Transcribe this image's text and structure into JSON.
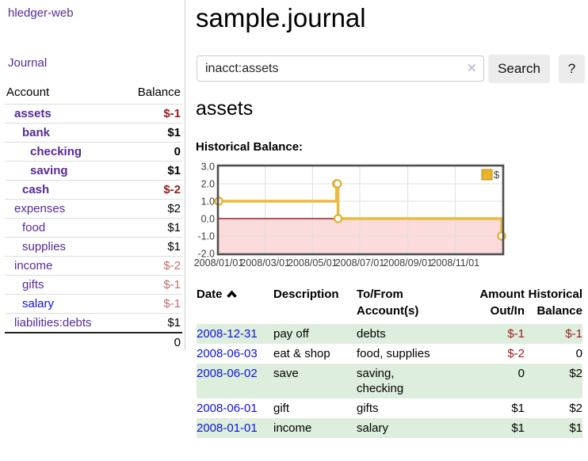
{
  "colors": {
    "purple": "#552a99",
    "blue": "#0f10e0",
    "negative": "#9c1b1b",
    "negative_soft": "#c17070",
    "stripe_green": "#ddeedd",
    "chart_line": "#e9bc3f",
    "chart_negative_fill": "#fbdbdb",
    "chart_zero_line": "#9b1c1c"
  },
  "app": {
    "brand": "hledger-web",
    "nav_journal": "Journal"
  },
  "sidebar": {
    "header": {
      "account": "Account",
      "balance": "Balance"
    },
    "accounts": [
      {
        "label": "assets",
        "balance": "$-1",
        "depth": 0,
        "bold": true,
        "tone": "neg",
        "link": "purple"
      },
      {
        "label": "bank",
        "balance": "$1",
        "depth": 1,
        "bold": true,
        "tone": "normal",
        "link": "purple"
      },
      {
        "label": "checking",
        "balance": "0",
        "depth": 2,
        "bold": true,
        "tone": "normal",
        "link": "purple"
      },
      {
        "label": "saving",
        "balance": "$1",
        "depth": 2,
        "bold": true,
        "tone": "normal",
        "link": "purple"
      },
      {
        "label": "cash",
        "balance": "$-2",
        "depth": 1,
        "bold": true,
        "tone": "neg",
        "link": "purple"
      },
      {
        "label": "expenses",
        "balance": "$2",
        "depth": 0,
        "bold": false,
        "tone": "normal",
        "link": "purple"
      },
      {
        "label": "food",
        "balance": "$1",
        "depth": 1,
        "bold": false,
        "tone": "normal",
        "link": "purple"
      },
      {
        "label": "supplies",
        "balance": "$1",
        "depth": 1,
        "bold": false,
        "tone": "normal",
        "link": "purple"
      },
      {
        "label": "income",
        "balance": "$-2",
        "depth": 0,
        "bold": false,
        "tone": "neg-soft",
        "link": "purple"
      },
      {
        "label": "gifts",
        "balance": "$-1",
        "depth": 1,
        "bold": false,
        "tone": "neg-soft",
        "link": "purple"
      },
      {
        "label": "salary",
        "balance": "$-1",
        "depth": 1,
        "bold": false,
        "tone": "neg-soft",
        "link": "blue"
      },
      {
        "label": "liabilities:debts",
        "balance": "$1",
        "depth": 0,
        "bold": false,
        "tone": "normal",
        "link": "purple"
      }
    ],
    "total": "0"
  },
  "main": {
    "title": "sample.journal",
    "search": {
      "value": "inacct:assets",
      "clear": "✕",
      "submit": "Search",
      "help": "?"
    },
    "account_title": "assets",
    "chart_heading": "Historical Balance:"
  },
  "chart_data": {
    "type": "line",
    "title": "Historical Balance",
    "step": true,
    "legend": "$",
    "legend_position": "top-right",
    "xlim": [
      "2008/01/01",
      "2009/01/01"
    ],
    "ylim": [
      -2.0,
      3.0
    ],
    "y_ticks": [
      "3.0",
      "2.0",
      "1.0",
      "0.0",
      "-1.0",
      "-2.0"
    ],
    "y_tick_values": [
      3,
      2,
      1,
      0,
      -1,
      -2
    ],
    "x_ticks": [
      "2008/01/01",
      "2008/03/01",
      "2008/05/01",
      "2008/07/01",
      "2008/09/01",
      "2008/11/01"
    ],
    "grid": true,
    "series": [
      {
        "name": "$",
        "points": [
          {
            "x": "2008/01/01",
            "y": 1
          },
          {
            "x": "2008/06/01",
            "y": 2
          },
          {
            "x": "2008/06/02",
            "y": 2
          },
          {
            "x": "2008/06/03",
            "y": 0
          },
          {
            "x": "2008/12/31",
            "y": -1
          }
        ]
      }
    ]
  },
  "register": {
    "headers": [
      {
        "label": "Date",
        "sorted": true,
        "align": "left"
      },
      {
        "label": "Description",
        "align": "left"
      },
      {
        "label": "To/From\nAccount(s)",
        "align": "left"
      },
      {
        "label": "Amount\nOut/In",
        "align": "right"
      },
      {
        "label": "Historical\nBalance",
        "align": "right"
      }
    ],
    "rows": [
      {
        "date": "2008-12-31",
        "description": "pay off",
        "accounts": "debts",
        "amount": "$-1",
        "amount_tone": "neg",
        "balance": "$-1",
        "balance_tone": "neg"
      },
      {
        "date": "2008-06-03",
        "description": "eat & shop",
        "accounts": "food, supplies",
        "amount": "$-2",
        "amount_tone": "neg",
        "balance": "0",
        "balance_tone": "normal"
      },
      {
        "date": "2008-06-02",
        "description": "save",
        "accounts": "saving,\nchecking",
        "amount": "0",
        "amount_tone": "normal",
        "balance": "$2",
        "balance_tone": "normal"
      },
      {
        "date": "2008-06-01",
        "description": "gift",
        "accounts": "gifts",
        "amount": "$1",
        "amount_tone": "normal",
        "balance": "$2",
        "balance_tone": "normal"
      },
      {
        "date": "2008-01-01",
        "description": "income",
        "accounts": "salary",
        "amount": "$1",
        "amount_tone": "normal",
        "balance": "$1",
        "balance_tone": "normal"
      }
    ]
  }
}
